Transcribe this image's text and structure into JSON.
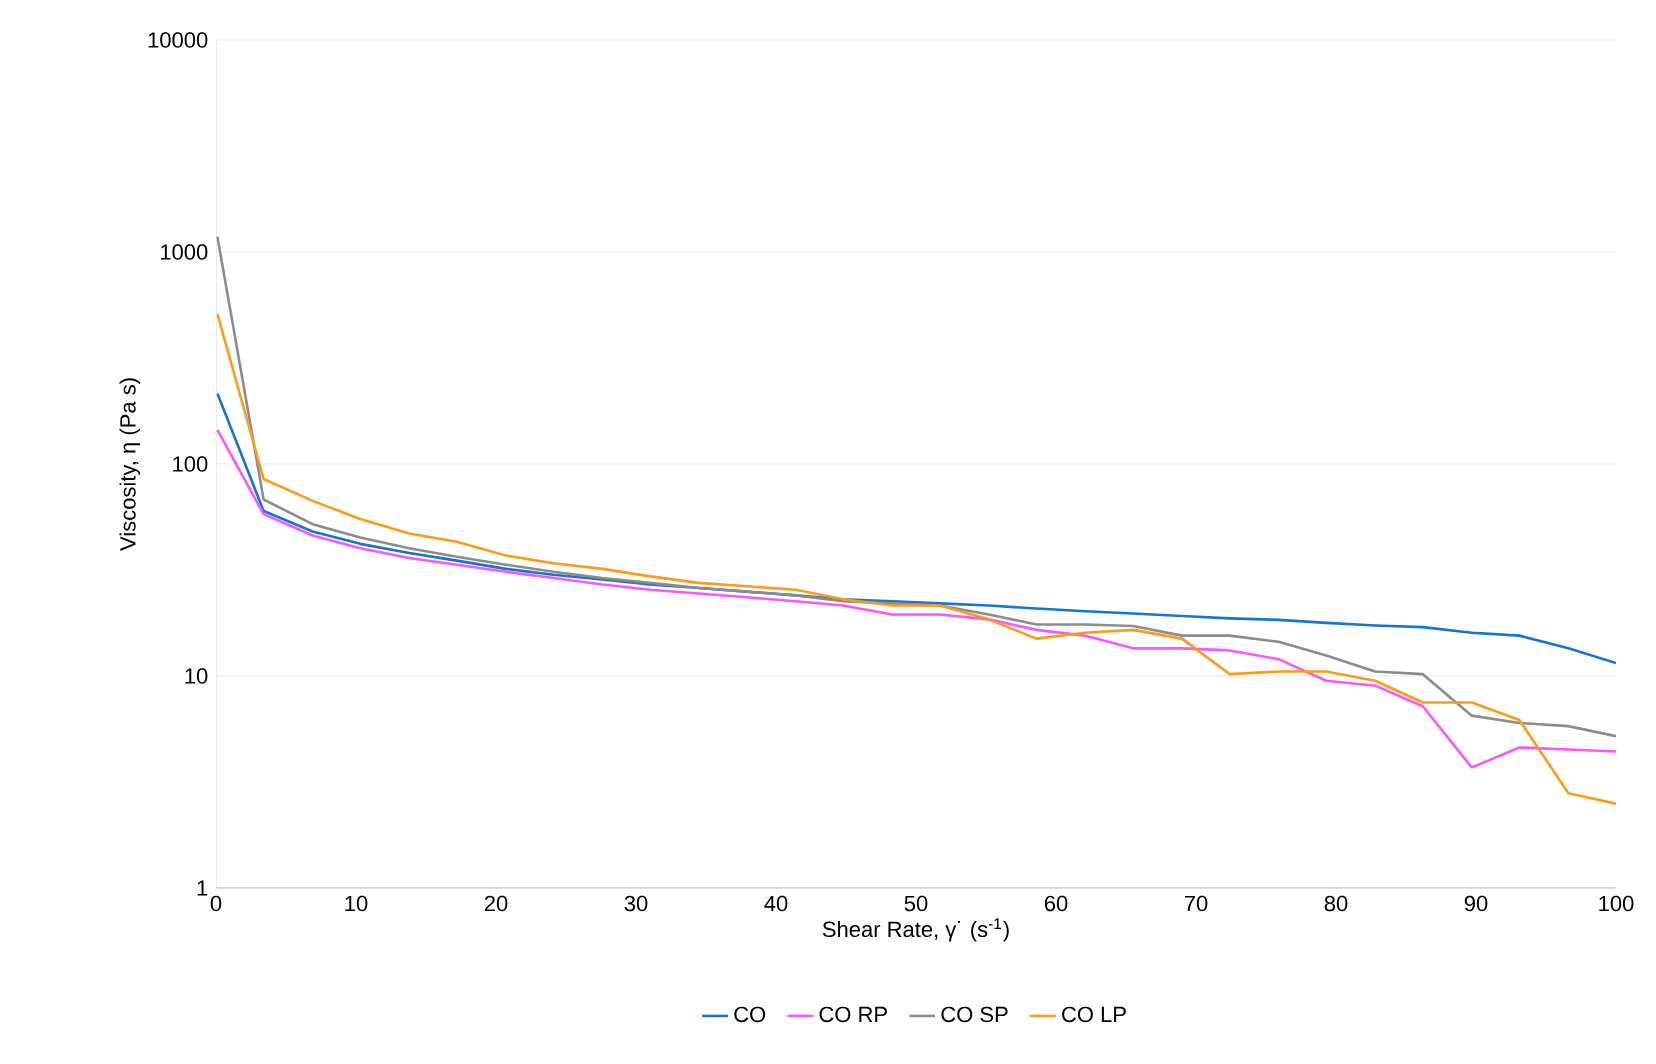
{
  "chart_data": {
    "type": "line",
    "xlabel": "Shear Rate, γ˙ (s$^{-1}$)",
    "ylabel": "Viscosity, η (Pa s)",
    "x": [
      0.1,
      3.4,
      6.9,
      10.3,
      13.8,
      17.2,
      20.7,
      24.1,
      27.6,
      31.0,
      34.5,
      37.9,
      41.4,
      44.8,
      48.3,
      51.7,
      55.2,
      58.6,
      62.1,
      65.5,
      69.0,
      72.4,
      75.9,
      79.3,
      82.8,
      86.2,
      89.7,
      93.1,
      96.6,
      100
    ],
    "series": [
      {
        "name": "CO",
        "color": "#1874cd",
        "values": [
          215,
          60,
          48,
          42,
          38,
          35,
          32,
          30,
          28.5,
          27,
          26,
          25,
          24,
          23,
          22.5,
          22,
          21.5,
          20.8,
          20.2,
          19.7,
          19.2,
          18.7,
          18.4,
          17.8,
          17.3,
          17,
          16,
          15.5,
          13.5,
          11.5
        ]
      },
      {
        "name": "CO RP",
        "color": "#ff55ff",
        "values": [
          145,
          58,
          46,
          40,
          36,
          33.5,
          31,
          29,
          27,
          25.5,
          24.5,
          23.5,
          22.5,
          21.5,
          19.5,
          19.5,
          18.5,
          16.5,
          15.5,
          13.5,
          13.5,
          13.2,
          12,
          9.5,
          9,
          7.2,
          3.7,
          4.6,
          4.5,
          4.4
        ]
      },
      {
        "name": "CO SP",
        "color": "#8c8c8c",
        "values": [
          1180,
          68,
          52,
          45,
          40,
          36.5,
          33.5,
          31,
          29,
          27.5,
          26,
          25,
          24,
          22.5,
          22,
          21.5,
          19.5,
          17.5,
          17.5,
          17.2,
          15.5,
          15.5,
          14.5,
          12.5,
          10.5,
          10.2,
          6.5,
          6,
          5.8,
          5.2
        ]
      },
      {
        "name": "CO LP",
        "color": "#ff9a1a",
        "values": [
          510,
          85,
          67,
          55,
          47,
          43,
          37,
          34,
          32,
          29.5,
          27.5,
          26.5,
          25.5,
          23,
          21.5,
          21.5,
          18.5,
          15,
          16,
          16.5,
          15,
          10.2,
          10.5,
          10.5,
          9.5,
          7.5,
          7.5,
          6.2,
          2.8,
          2.5
        ]
      }
    ],
    "xlim": [
      0,
      100
    ],
    "xticks": [
      0,
      10,
      20,
      30,
      40,
      50,
      60,
      70,
      80,
      90,
      100
    ],
    "ylim": [
      1,
      10000
    ],
    "yticks": [
      1,
      10,
      100,
      1000,
      10000
    ],
    "log": "y",
    "grid": "y",
    "legend": "bottom",
    "marker": "none",
    "line_style": "solid"
  }
}
